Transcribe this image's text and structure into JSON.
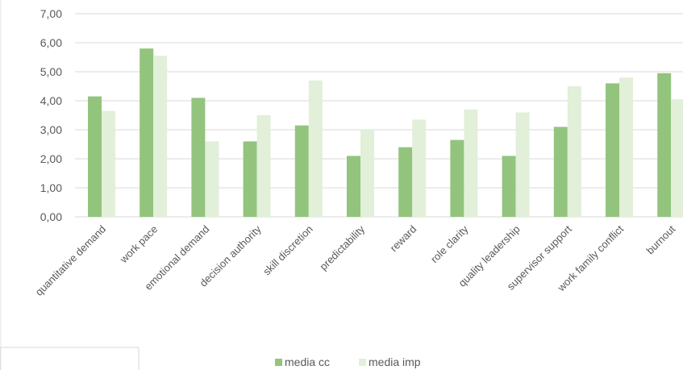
{
  "chart_data": {
    "type": "bar",
    "categories": [
      "quantitative demand",
      "work pace",
      "emotional demand",
      "decision authority",
      "skill discretion",
      "predictability",
      "reward",
      "role clarity",
      "quality leadership",
      "supervisor support",
      "work family conflict",
      "burnout"
    ],
    "series": [
      {
        "name": "media cc",
        "values": [
          4.15,
          5.8,
          4.1,
          2.6,
          3.15,
          2.1,
          2.4,
          2.65,
          2.1,
          3.1,
          4.6,
          4.95
        ],
        "color": "#93c47d"
      },
      {
        "name": "media imp",
        "values": [
          3.65,
          5.55,
          2.6,
          3.5,
          4.7,
          3.0,
          3.35,
          3.7,
          3.6,
          4.5,
          4.8,
          4.05
        ],
        "color": "#e2efd9"
      }
    ],
    "y_tick_labels": [
      "0,00",
      "1,00",
      "2,00",
      "3,00",
      "4,00",
      "5,00",
      "6,00",
      "7,00"
    ],
    "ylim": [
      0,
      7
    ],
    "grid": true,
    "legend_position": "bottom"
  }
}
